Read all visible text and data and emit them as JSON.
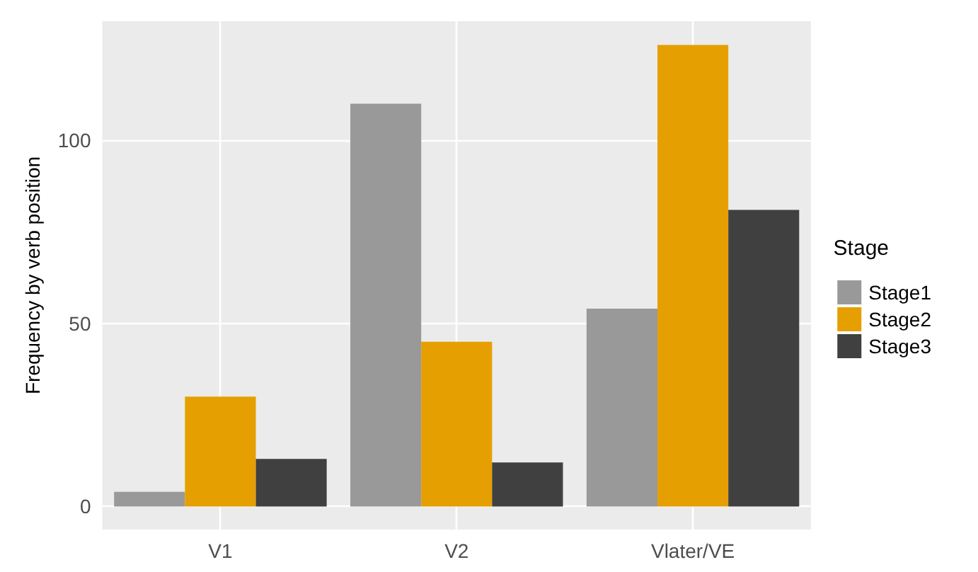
{
  "chart_data": {
    "type": "bar",
    "ylabel": "Frequency by verb position",
    "legend_title": "Stage",
    "categories": [
      "V1",
      "V2",
      "Vlater/VE"
    ],
    "series": [
      {
        "name": "Stage1",
        "color": "#999999",
        "values": [
          4,
          110,
          54
        ]
      },
      {
        "name": "Stage2",
        "color": "#e69f00",
        "values": [
          30,
          45,
          126
        ]
      },
      {
        "name": "Stage3",
        "color": "#404040",
        "values": [
          13,
          12,
          81
        ]
      }
    ],
    "ylim": [
      -6.3,
      132.5
    ],
    "yticks": [
      0,
      50,
      100
    ],
    "grid": true,
    "legend": "right"
  }
}
